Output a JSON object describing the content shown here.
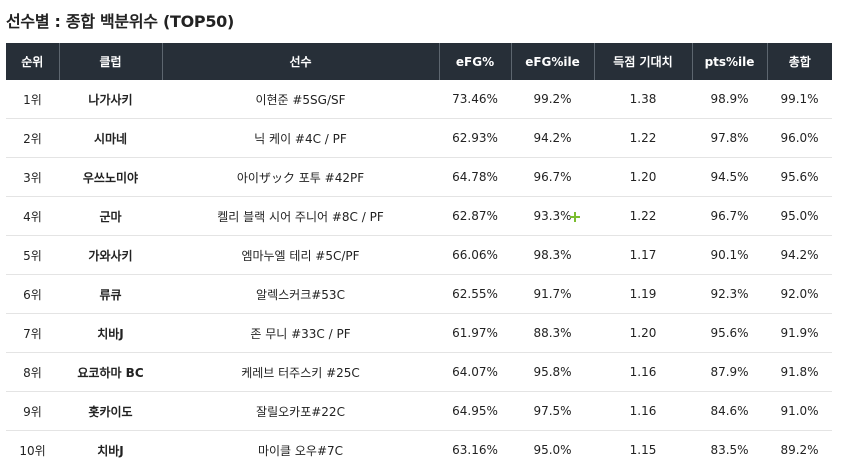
{
  "title": "선수별 : 종합 백분위수 (TOP50)",
  "columns": [
    "순위",
    "클럽",
    "선수",
    "eFG%",
    "eFG%ile",
    "득점 기대치",
    "pts%ile",
    "총합"
  ],
  "rows": [
    {
      "rank": "1위",
      "club": "나가사키",
      "player": "이현준 #5SG/SF",
      "efg": "73.46%",
      "efg_ile": "99.2%",
      "exp_pts": "1.38",
      "pts_ile": "98.9%",
      "total": "99.1%"
    },
    {
      "rank": "2위",
      "club": "시마네",
      "player": "닉 케이 #4C / PF",
      "efg": "62.93%",
      "efg_ile": "94.2%",
      "exp_pts": "1.22",
      "pts_ile": "97.8%",
      "total": "96.0%"
    },
    {
      "rank": "3위",
      "club": "우쓰노미야",
      "player": "아이ザック 포투 #42PF",
      "efg": "64.78%",
      "efg_ile": "96.7%",
      "exp_pts": "1.20",
      "pts_ile": "94.5%",
      "total": "95.6%"
    },
    {
      "rank": "4위",
      "club": "군마",
      "player": "켈리 블랙 시어 주니어 #8C / PF",
      "efg": "62.87%",
      "efg_ile": "93.3%",
      "exp_pts": "1.22",
      "pts_ile": "96.7%",
      "total": "95.0%"
    },
    {
      "rank": "5위",
      "club": "가와사키",
      "player": "엠마누엘 테리 #5C/PF",
      "efg": "66.06%",
      "efg_ile": "98.3%",
      "exp_pts": "1.17",
      "pts_ile": "90.1%",
      "total": "94.2%"
    },
    {
      "rank": "6위",
      "club": "류큐",
      "player": "알렉스커크#53C",
      "efg": "62.55%",
      "efg_ile": "91.7%",
      "exp_pts": "1.19",
      "pts_ile": "92.3%",
      "total": "92.0%"
    },
    {
      "rank": "7위",
      "club": "치바J",
      "player": "존 무니 #33C / PF",
      "efg": "61.97%",
      "efg_ile": "88.3%",
      "exp_pts": "1.20",
      "pts_ile": "95.6%",
      "total": "91.9%"
    },
    {
      "rank": "8위",
      "club": "요코하마 BC",
      "player": "케레브 터주스키 #25C",
      "efg": "64.07%",
      "efg_ile": "95.8%",
      "exp_pts": "1.16",
      "pts_ile": "87.9%",
      "total": "91.8%"
    },
    {
      "rank": "9위",
      "club": "홋카이도",
      "player": "잘릴오카포#22C",
      "efg": "64.95%",
      "efg_ile": "97.5%",
      "exp_pts": "1.16",
      "pts_ile": "84.6%",
      "total": "91.0%"
    },
    {
      "rank": "10위",
      "club": "치바J",
      "player": "마이클 오우#7C",
      "efg": "63.16%",
      "efg_ile": "95.0%",
      "exp_pts": "1.15",
      "pts_ile": "83.5%",
      "total": "89.2%"
    }
  ],
  "icons": {
    "cursor": "crosshair-cursor-icon"
  },
  "colors": {
    "header_bg": "#272f38",
    "header_text": "#ffffff",
    "cursor": "#7bbd2f"
  }
}
